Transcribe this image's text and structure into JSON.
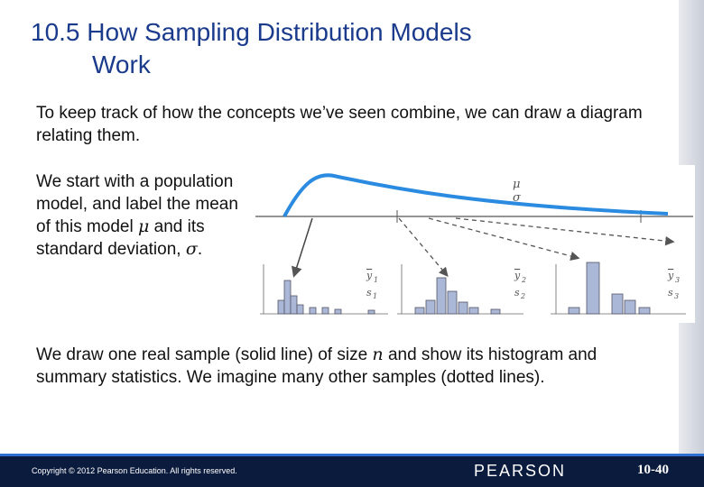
{
  "header": {
    "title_line1": "10.5 How Sampling Distribution Models",
    "title_line2": "Work"
  },
  "body": {
    "paragraph1": "To keep track of how the concepts we’ve seen combine, we can draw a diagram relating them.",
    "paragraph2": {
      "text1": "We start with a population model, and label the mean of this model ",
      "mu": "μ",
      "text2": " and its standard deviation, ",
      "sigma": "σ",
      "text3": "."
    },
    "paragraph3": {
      "text1": "We draw one real sample (solid line) of size ",
      "n": "n",
      "text2": " and show its histogram and summary statistics. We imagine many other samples (dotted lines)."
    }
  },
  "diagram": {
    "population_mean": "μ",
    "population_sd": "σ",
    "samples": [
      {
        "mean": "y",
        "mean_sub": "1",
        "sd": "s",
        "sd_sub": "1"
      },
      {
        "mean": "y",
        "mean_sub": "2",
        "sd": "s",
        "sd_sub": "2"
      },
      {
        "mean": "y",
        "mean_sub": "3",
        "sd": "s",
        "sd_sub": "3"
      }
    ]
  },
  "footer": {
    "copyright": "Copyright © 2012 Pearson Education. All rights reserved.",
    "publisher": "PEARSON",
    "page": "10-40"
  }
}
